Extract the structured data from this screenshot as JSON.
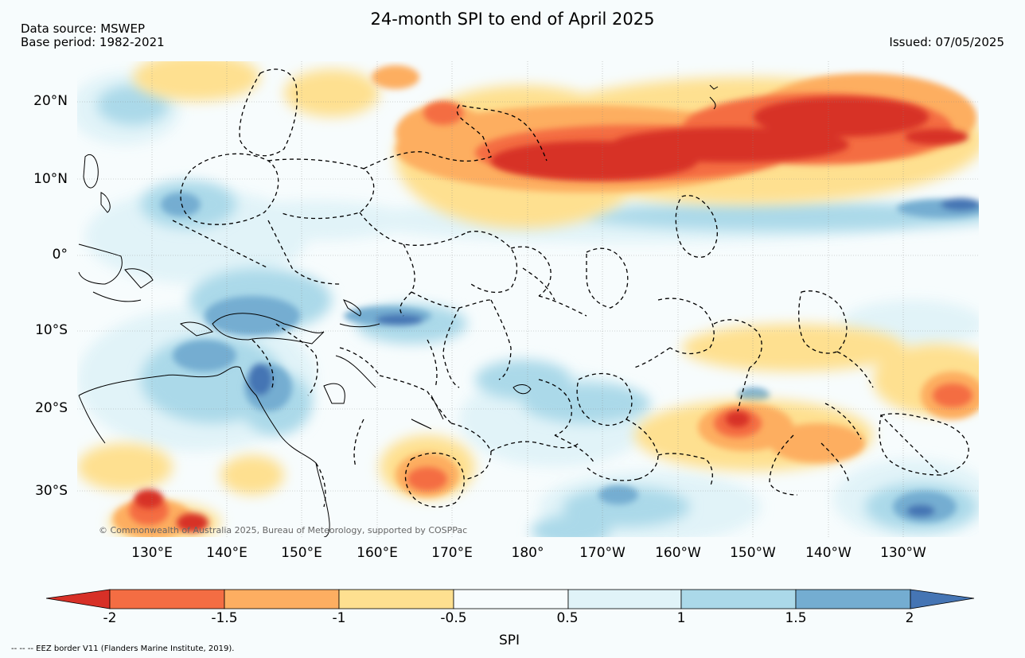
{
  "header": {
    "title": "24-month SPI to end of April 2025",
    "source_line": "Data source: MSWEP",
    "base_line": "Base period: 1982-2021",
    "issued": "Issued: 07/05/2025"
  },
  "map": {
    "lat_labels": [
      "20°N",
      "10°N",
      "0°",
      "10°S",
      "20°S",
      "30°S"
    ],
    "lon_labels": [
      "130°E",
      "140°E",
      "150°E",
      "160°E",
      "170°E",
      "180°",
      "170°W",
      "160°W",
      "150°W",
      "140°W",
      "130°W"
    ],
    "copyright": "© Commonwealth of Australia 2025, Bureau of Meteorology, supported by COSPPac"
  },
  "colorbar": {
    "ticks": [
      "-2",
      "-1.5",
      "-1",
      "-0.5",
      "0.5",
      "1",
      "1.5",
      "2"
    ],
    "label": "SPI",
    "colors": [
      "#d73027",
      "#f46d43",
      "#fdae61",
      "#fee090",
      "#f7fcfd",
      "#e0f3f8",
      "#abd9e9",
      "#74add1",
      "#4575b4"
    ]
  },
  "footnote": "--  --  -- EEZ border V11 (Flanders Marine Institute, 2019)."
}
